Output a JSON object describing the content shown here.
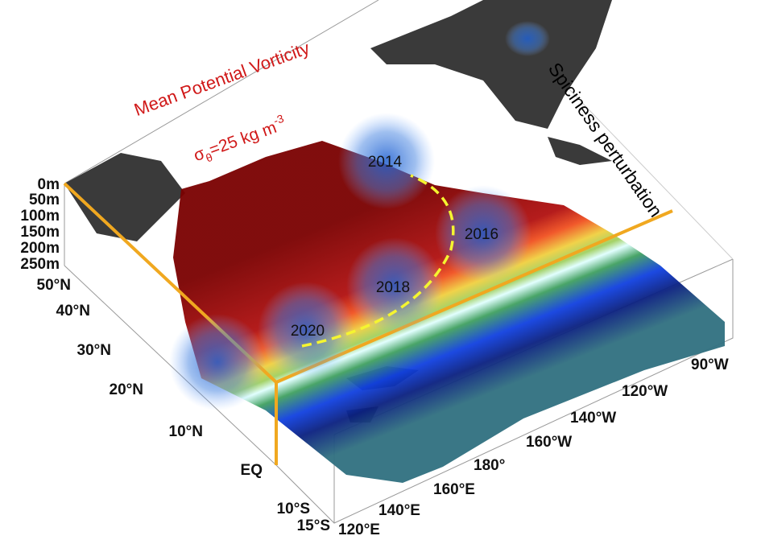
{
  "title": "Mean Potential Vorticity",
  "subtitle": {
    "symbol": "σ",
    "subscript": "θ",
    "text": "=25 kg m",
    "superscript": "-3"
  },
  "legend": "Spiciness perturbation",
  "years": [
    "2014",
    "2016",
    "2018",
    "2020"
  ],
  "depth_labels": [
    "0m",
    "50m",
    "100m",
    "150m",
    "200m",
    "250m"
  ],
  "lat_labels": [
    "50°N",
    "40°N",
    "30°N",
    "20°N",
    "10°N",
    "EQ",
    "10°S",
    "15°S"
  ],
  "lon_labels": [
    "120°E",
    "140°E",
    "160°E",
    "180°",
    "160°W",
    "140°W",
    "120°W",
    "90°W"
  ]
}
